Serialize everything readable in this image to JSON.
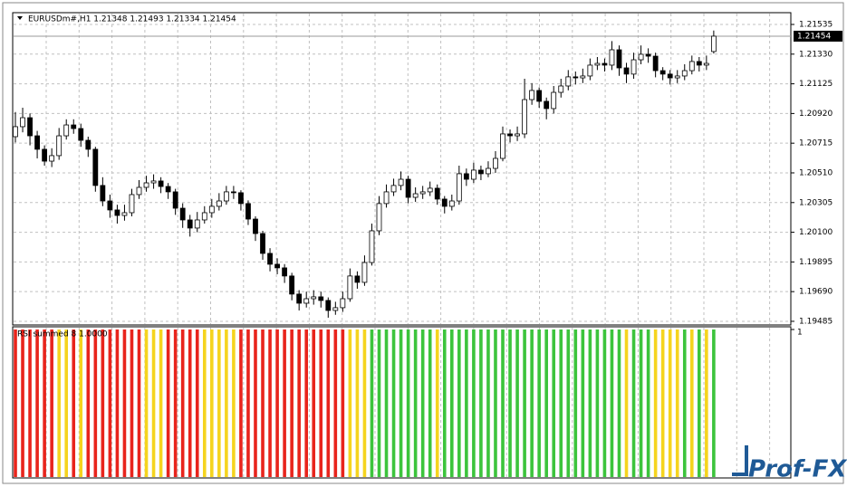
{
  "chart_data": [
    {
      "type": "candlestick",
      "title": "EURUSDm#,H1  1.21348 1.21493 1.21334 1.21454",
      "ylim": [
        1.19466,
        1.2161
      ],
      "yticks": [
        {
          "value": 1.21535,
          "label": "1.21535"
        },
        {
          "value": 1.2133,
          "label": "1.21330"
        },
        {
          "value": 1.21125,
          "label": "1.21125"
        },
        {
          "value": 1.2092,
          "label": "1.20920"
        },
        {
          "value": 1.20715,
          "label": "1.20715"
        },
        {
          "value": 1.2051,
          "label": "1.20510"
        },
        {
          "value": 1.20305,
          "label": "1.20305"
        },
        {
          "value": 1.201,
          "label": "1.20100"
        },
        {
          "value": 1.19895,
          "label": "1.19895"
        },
        {
          "value": 1.1969,
          "label": "1.19690"
        },
        {
          "value": 1.19485,
          "label": "1.19485"
        }
      ],
      "grid": true,
      "bull_color": "#ffffff",
      "bear_color": "#000000",
      "last_price": 1.21454,
      "ohlc": [
        [
          1.2076,
          1.2093,
          1.2072,
          1.20829
        ],
        [
          1.20829,
          1.2096,
          1.2079,
          1.20891
        ],
        [
          1.20891,
          1.2092,
          1.207,
          1.20766
        ],
        [
          1.20766,
          1.208,
          1.2061,
          1.20673
        ],
        [
          1.20673,
          1.207,
          1.2056,
          1.20591
        ],
        [
          1.20591,
          1.2068,
          1.2055,
          1.20629
        ],
        [
          1.20629,
          1.2082,
          1.206,
          1.20766
        ],
        [
          1.20766,
          1.2088,
          1.2074,
          1.20841
        ],
        [
          1.20841,
          1.2088,
          1.2078,
          1.20816
        ],
        [
          1.20816,
          1.2085,
          1.2069,
          1.20735
        ],
        [
          1.20735,
          1.2076,
          1.2062,
          1.20673
        ],
        [
          1.20673,
          1.2069,
          1.2038,
          1.20423
        ],
        [
          1.20423,
          1.2048,
          1.2028,
          1.20316
        ],
        [
          1.20316,
          1.2036,
          1.202,
          1.20254
        ],
        [
          1.20254,
          1.2029,
          1.2016,
          1.20216
        ],
        [
          1.20216,
          1.2029,
          1.2018,
          1.20235
        ],
        [
          1.20235,
          1.204,
          1.2021,
          1.2036
        ],
        [
          1.2036,
          1.2046,
          1.2033,
          1.2041
        ],
        [
          1.2041,
          1.2049,
          1.2038,
          1.20441
        ],
        [
          1.20441,
          1.205,
          1.204,
          1.20454
        ],
        [
          1.20454,
          1.2048,
          1.2037,
          1.20416
        ],
        [
          1.20416,
          1.2044,
          1.2033,
          1.20379
        ],
        [
          1.20379,
          1.204,
          1.2022,
          1.20266
        ],
        [
          1.20266,
          1.203,
          1.2013,
          1.20185
        ],
        [
          1.20185,
          1.2022,
          1.2007,
          1.20129
        ],
        [
          1.20129,
          1.2024,
          1.201,
          1.20185
        ],
        [
          1.20185,
          1.2028,
          1.2016,
          1.20235
        ],
        [
          1.20235,
          1.2033,
          1.202,
          1.20279
        ],
        [
          1.20279,
          1.2037,
          1.2025,
          1.20316
        ],
        [
          1.20316,
          1.2042,
          1.2029,
          1.20379
        ],
        [
          1.20379,
          1.2042,
          1.2033,
          1.20373
        ],
        [
          1.20373,
          1.2039,
          1.2025,
          1.20298
        ],
        [
          1.20298,
          1.2032,
          1.2015,
          1.20191
        ],
        [
          1.20191,
          1.2021,
          1.2004,
          1.20091
        ],
        [
          1.20091,
          1.2011,
          1.1991,
          1.19954
        ],
        [
          1.19954,
          1.1999,
          1.1983,
          1.19879
        ],
        [
          1.19879,
          1.1992,
          1.1981,
          1.19854
        ],
        [
          1.19854,
          1.1988,
          1.1975,
          1.19798
        ],
        [
          1.19798,
          1.1982,
          1.1963,
          1.19673
        ],
        [
          1.19673,
          1.197,
          1.1956,
          1.1961
        ],
        [
          1.1961,
          1.1969,
          1.1958,
          1.19641
        ],
        [
          1.19641,
          1.197,
          1.196,
          1.19654
        ],
        [
          1.19654,
          1.1969,
          1.1958,
          1.19629
        ],
        [
          1.19629,
          1.1965,
          1.1951,
          1.1956
        ],
        [
          1.1956,
          1.1962,
          1.1953,
          1.19579
        ],
        [
          1.19579,
          1.1969,
          1.1955,
          1.19641
        ],
        [
          1.19641,
          1.1985,
          1.1962,
          1.19798
        ],
        [
          1.19798,
          1.1983,
          1.1971,
          1.19754
        ],
        [
          1.19754,
          1.1994,
          1.1973,
          1.19891
        ],
        [
          1.19891,
          1.2016,
          1.1987,
          1.2011
        ],
        [
          1.2011,
          1.2035,
          1.2008,
          1.20298
        ],
        [
          1.20298,
          1.2043,
          1.2027,
          1.20379
        ],
        [
          1.20379,
          1.2047,
          1.2035,
          1.20423
        ],
        [
          1.20423,
          1.2052,
          1.2039,
          1.20466
        ],
        [
          1.20466,
          1.2049,
          1.203,
          1.20341
        ],
        [
          1.20341,
          1.2041,
          1.2031,
          1.20366
        ],
        [
          1.20366,
          1.2042,
          1.2033,
          1.20379
        ],
        [
          1.20379,
          1.2045,
          1.2035,
          1.20404
        ],
        [
          1.20404,
          1.2043,
          1.2029,
          1.20329
        ],
        [
          1.20329,
          1.2035,
          1.2023,
          1.20279
        ],
        [
          1.20279,
          1.2036,
          1.2025,
          1.20316
        ],
        [
          1.20316,
          1.2056,
          1.2029,
          1.20504
        ],
        [
          1.20504,
          1.2054,
          1.2042,
          1.20466
        ],
        [
          1.20466,
          1.2058,
          1.2044,
          1.20529
        ],
        [
          1.20529,
          1.2056,
          1.2046,
          1.20504
        ],
        [
          1.20504,
          1.2059,
          1.2048,
          1.20541
        ],
        [
          1.20541,
          1.2066,
          1.2051,
          1.2061
        ],
        [
          1.2061,
          1.2083,
          1.2059,
          1.20779
        ],
        [
          1.20779,
          1.2081,
          1.2072,
          1.20766
        ],
        [
          1.20766,
          1.2083,
          1.2073,
          1.20779
        ],
        [
          1.20779,
          1.2116,
          1.2075,
          1.21016
        ],
        [
          1.21016,
          1.2113,
          1.2098,
          1.21079
        ],
        [
          1.21079,
          1.211,
          1.2096,
          1.21004
        ],
        [
          1.21004,
          1.2103,
          1.2088,
          1.20954
        ],
        [
          1.20954,
          1.2111,
          1.2092,
          1.21066
        ],
        [
          1.21066,
          1.2116,
          1.2103,
          1.2111
        ],
        [
          1.2111,
          1.2122,
          1.2108,
          1.21173
        ],
        [
          1.21173,
          1.2121,
          1.2112,
          1.21166
        ],
        [
          1.21166,
          1.2123,
          1.2113,
          1.21179
        ],
        [
          1.21179,
          1.213,
          1.2115,
          1.21254
        ],
        [
          1.21254,
          1.2131,
          1.2122,
          1.21266
        ],
        [
          1.21266,
          1.213,
          1.2121,
          1.21254
        ],
        [
          1.21254,
          1.2142,
          1.2122,
          1.2136
        ],
        [
          1.2136,
          1.2139,
          1.2118,
          1.21235
        ],
        [
          1.21235,
          1.2127,
          1.2113,
          1.21192
        ],
        [
          1.21192,
          1.2134,
          1.2116,
          1.21291
        ],
        [
          1.21291,
          1.2139,
          1.2126,
          1.21329
        ],
        [
          1.21329,
          1.2137,
          1.2127,
          1.21316
        ],
        [
          1.21316,
          1.2134,
          1.2117,
          1.21216
        ],
        [
          1.21216,
          1.2124,
          1.2115,
          1.21192
        ],
        [
          1.21192,
          1.2122,
          1.2112,
          1.21166
        ],
        [
          1.21166,
          1.2122,
          1.2113,
          1.21179
        ],
        [
          1.21179,
          1.2126,
          1.2115,
          1.21216
        ],
        [
          1.21216,
          1.2132,
          1.2119,
          1.21279
        ],
        [
          1.21279,
          1.2131,
          1.2121,
          1.21254
        ],
        [
          1.21254,
          1.2132,
          1.2122,
          1.21266
        ],
        [
          1.21348,
          1.21493,
          1.21334,
          1.21454
        ]
      ]
    },
    {
      "type": "bar",
      "title": "RSI summed 8 1.0000",
      "ylim": [
        0,
        1
      ],
      "yticks": [
        1
      ],
      "palette": {
        "r": "#e8241c",
        "y": "#f5d41e",
        "g": "#3cc43c"
      },
      "colors": [
        "r",
        "r",
        "r",
        "r",
        "r",
        "r",
        "y",
        "y",
        "r",
        "y",
        "r",
        "r",
        "r",
        "r",
        "r",
        "r",
        "r",
        "r",
        "y",
        "y",
        "y",
        "r",
        "r",
        "r",
        "r",
        "r",
        "y",
        "y",
        "y",
        "y",
        "y",
        "r",
        "r",
        "r",
        "r",
        "r",
        "r",
        "r",
        "r",
        "r",
        "r",
        "r",
        "r",
        "r",
        "r",
        "r",
        "y",
        "y",
        "y",
        "g",
        "g",
        "g",
        "g",
        "g",
        "g",
        "g",
        "g",
        "g",
        "y",
        "g",
        "g",
        "g",
        "g",
        "g",
        "g",
        "g",
        "g",
        "g",
        "g",
        "g",
        "g",
        "g",
        "g",
        "g",
        "g",
        "g",
        "g",
        "g",
        "g",
        "g",
        "g",
        "g",
        "g",
        "g",
        "y",
        "g",
        "g",
        "g",
        "y",
        "y",
        "y",
        "y",
        "g",
        "y",
        "g",
        "y",
        "g"
      ],
      "values": [
        1,
        1,
        1,
        1,
        1,
        1,
        1,
        1,
        1,
        1,
        1,
        1,
        1,
        1,
        1,
        1,
        1,
        1,
        1,
        1,
        1,
        1,
        1,
        1,
        1,
        1,
        1,
        1,
        1,
        1,
        1,
        1,
        1,
        1,
        1,
        1,
        1,
        1,
        1,
        1,
        1,
        1,
        1,
        1,
        1,
        1,
        1,
        1,
        1,
        1,
        1,
        1,
        1,
        1,
        1,
        1,
        1,
        1,
        1,
        1,
        1,
        1,
        1,
        1,
        1,
        1,
        1,
        1,
        1,
        1,
        1,
        1,
        1,
        1,
        1,
        1,
        1,
        1,
        1,
        1,
        1,
        1,
        1,
        1,
        1,
        1,
        1,
        1,
        1,
        1,
        1,
        1,
        1,
        1,
        1,
        1,
        1
      ]
    },
    {
      "type": "watermark",
      "title": "Prof-FX"
    }
  ]
}
